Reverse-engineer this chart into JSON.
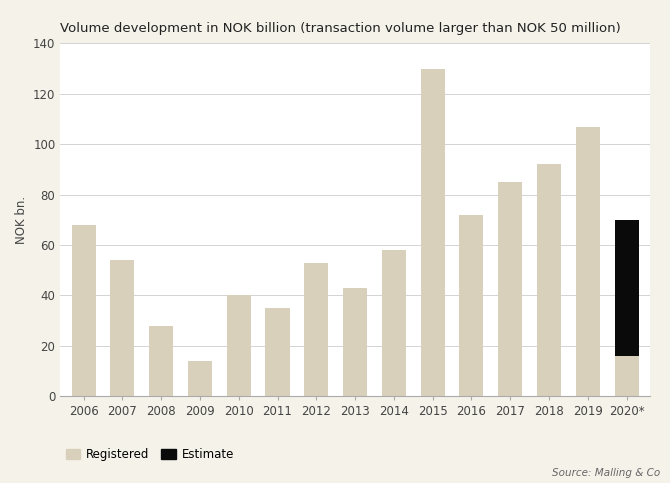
{
  "title": "Volume development in NOK billion (transaction volume larger than NOK 50 million)",
  "ylabel": "NOK bn.",
  "source": "Source: Malling & Co",
  "years": [
    "2006",
    "2007",
    "2008",
    "2009",
    "2010",
    "2011",
    "2012",
    "2013",
    "2014",
    "2015",
    "2016",
    "2017",
    "2018",
    "2019",
    "2020*"
  ],
  "registered": [
    68,
    54,
    28,
    14,
    40,
    35,
    53,
    43,
    58,
    130,
    72,
    85,
    92,
    107,
    16
  ],
  "estimate": [
    0,
    0,
    0,
    0,
    0,
    0,
    0,
    0,
    0,
    0,
    0,
    0,
    0,
    0,
    54
  ],
  "registered_color": "#d9d0bc",
  "estimate_color": "#0a0a0a",
  "fig_background_color": "#f5f2ea",
  "plot_background_color": "#ffffff",
  "ylim": [
    0,
    140
  ],
  "yticks": [
    0,
    20,
    40,
    60,
    80,
    100,
    120,
    140
  ],
  "title_fontsize": 9.5,
  "axis_fontsize": 8.5,
  "legend_fontsize": 8.5,
  "source_fontsize": 7.5
}
